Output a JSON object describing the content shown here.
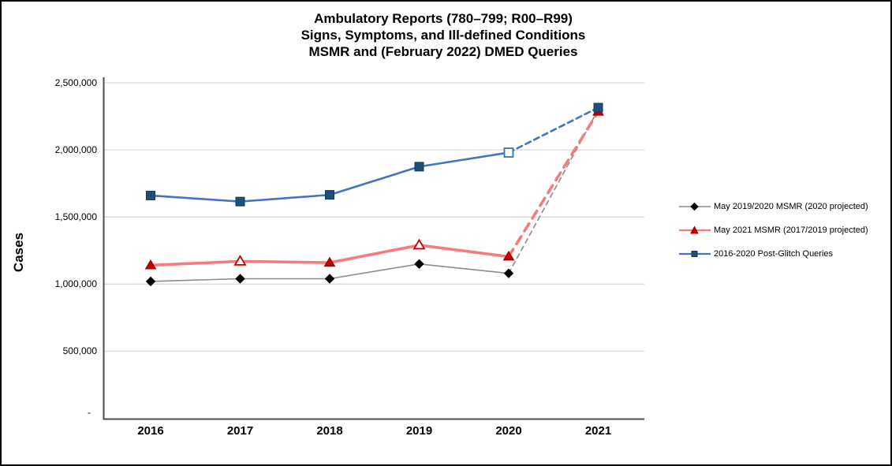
{
  "chart_data": {
    "type": "line",
    "title": "Ambulatory Reports (780–799; R00–R99) Signs, Symptoms, and Ill-defined Conditions MSMR and (February 2022) DMED Queries",
    "title_lines": [
      "Ambulatory Reports (780–799; R00–R99)",
      "Signs, Symptoms, and Ill-defined Conditions",
      "MSMR and (February 2022) DMED Queries"
    ],
    "xlabel": "",
    "ylabel": "Cases",
    "categories": [
      "2016",
      "2017",
      "2018",
      "2019",
      "2020",
      "2021"
    ],
    "ylim": [
      0,
      2500000
    ],
    "ytick_values": [
      2500000,
      2000000,
      1500000,
      1000000,
      500000,
      0
    ],
    "ytick_labels": [
      "2,500,000",
      "2,000,000",
      "1,500,000",
      "1,000,000",
      "500,000",
      "-"
    ],
    "grid": true,
    "legend_position": "right",
    "series": [
      {
        "name": "May 2019/2020 MSMR (2020 projected)",
        "marker": "diamond",
        "line_color": "#8C8C8C",
        "line_width": 1.6,
        "marker_color": "#000000",
        "marker_stroke": "#000000",
        "open_stroke": "#000000",
        "values": [
          1020000,
          1040000,
          1040000,
          1150000,
          1080000,
          2300000
        ],
        "open_markers": [],
        "dashed_from_index": 4
      },
      {
        "name": "May 2021 MSMR (2017/2019 projected)",
        "marker": "triangle",
        "line_color": "#F47C7C",
        "line_width": 3.6,
        "marker_color": "#C00000",
        "marker_stroke": "#990000",
        "open_stroke": "#C00000",
        "values": [
          1140000,
          1170000,
          1160000,
          1290000,
          1205000,
          2285000
        ],
        "open_markers": [
          1,
          3
        ],
        "dashed_from_index": 4
      },
      {
        "name": "2016-2020 Post-Glitch Queries",
        "marker": "square",
        "line_color": "#4472C4",
        "line_width": 2.6,
        "marker_color": "#1F4E79",
        "marker_stroke": "#17375E",
        "open_stroke": "#2E75B6",
        "values": [
          1660000,
          1615000,
          1665000,
          1875000,
          1980000,
          2315000
        ],
        "open_markers": [
          4
        ],
        "dashed_from_index": 4
      }
    ]
  }
}
